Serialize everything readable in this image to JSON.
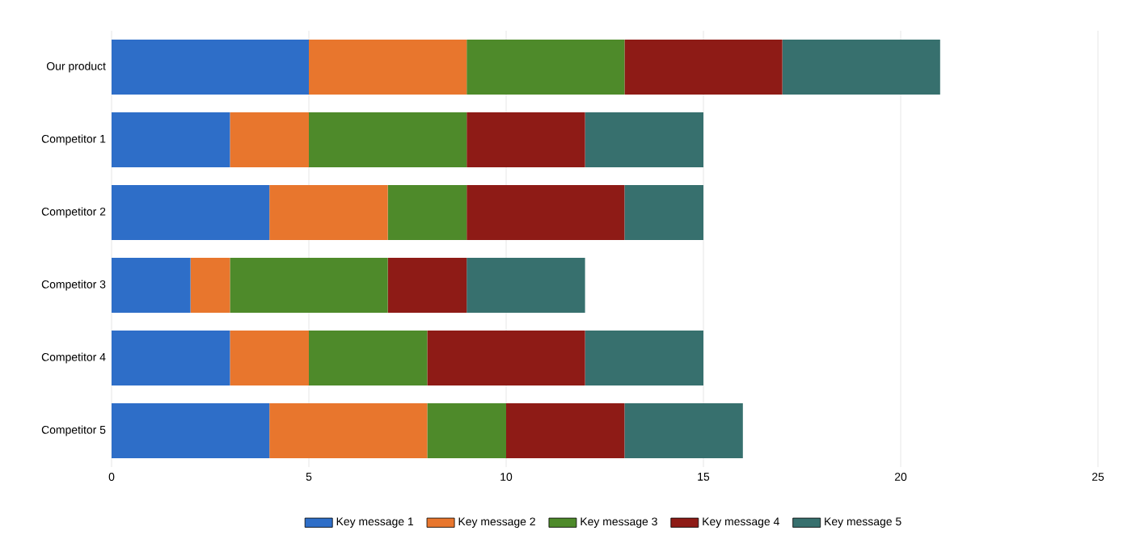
{
  "chart_data": {
    "type": "bar",
    "orientation": "horizontal",
    "stacked": true,
    "categories": [
      "Our product",
      "Competitor 1",
      "Competitor 2",
      "Competitor 3",
      "Competitor 4",
      "Competitor 5"
    ],
    "series": [
      {
        "name": "Key message 1",
        "color": "#2e6ec8",
        "values": [
          5,
          3,
          4,
          2,
          3,
          4
        ]
      },
      {
        "name": "Key message 2",
        "color": "#e8762d",
        "values": [
          4,
          2,
          3,
          1,
          2,
          4
        ]
      },
      {
        "name": "Key message 3",
        "color": "#4e8a2a",
        "values": [
          4,
          4,
          2,
          4,
          3,
          2
        ]
      },
      {
        "name": "Key message 4",
        "color": "#8e1b16",
        "values": [
          4,
          3,
          4,
          2,
          4,
          3
        ]
      },
      {
        "name": "Key message 5",
        "color": "#37706e",
        "values": [
          4,
          3,
          2,
          3,
          3,
          3
        ]
      }
    ],
    "xlim": [
      0,
      25
    ],
    "xticks": [
      0,
      5,
      10,
      15,
      20,
      25
    ],
    "grid": "x",
    "legend": "bottom"
  }
}
